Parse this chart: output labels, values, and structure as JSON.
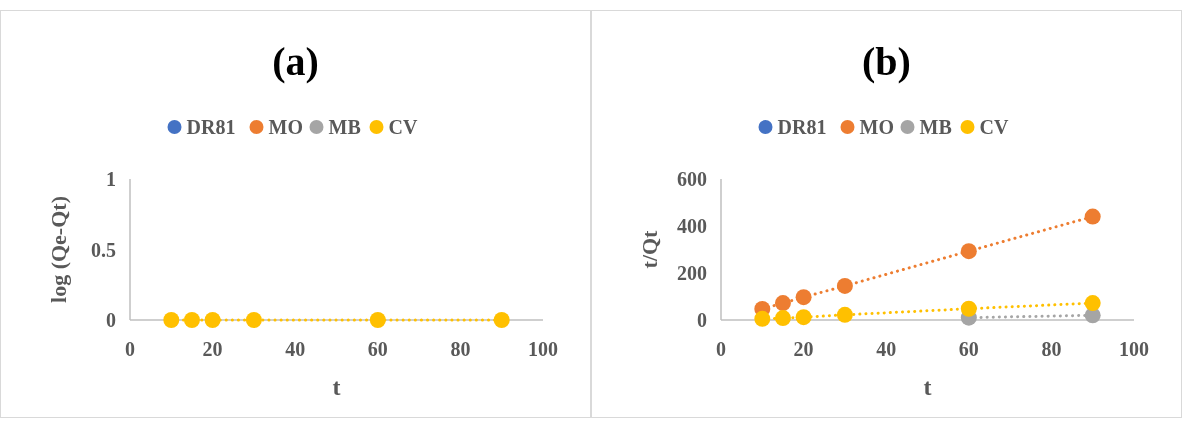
{
  "chart_data": [
    {
      "type": "line",
      "title": "(a)",
      "xlabel": "t",
      "ylabel": "log (Qe-Qt)",
      "x": [
        10,
        15,
        20,
        30,
        60,
        90
      ],
      "xlim": [
        0,
        100
      ],
      "xticks": [
        0,
        20,
        40,
        60,
        80,
        100
      ],
      "ylim": [
        0,
        1
      ],
      "yticks": [
        0,
        0.5,
        1
      ],
      "legend": "top",
      "marker": "circle",
      "line_style": "dotted",
      "series": [
        {
          "name": "DR81",
          "color": "#4472c4",
          "values": [
            null,
            null,
            null,
            null,
            null,
            null
          ]
        },
        {
          "name": "MO",
          "color": "#ed7d31",
          "values": [
            null,
            null,
            null,
            null,
            null,
            null
          ]
        },
        {
          "name": "MB",
          "color": "#a5a5a5",
          "values": [
            null,
            null,
            null,
            null,
            null,
            null
          ]
        },
        {
          "name": "CV",
          "color": "#ffc000",
          "values": [
            0,
            0,
            0,
            0,
            0,
            0
          ]
        }
      ]
    },
    {
      "type": "line",
      "title": "(b)",
      "xlabel": "t",
      "ylabel": "t/Qt",
      "x": [
        10,
        15,
        20,
        30,
        60,
        90
      ],
      "xlim": [
        0,
        100
      ],
      "xticks": [
        0,
        20,
        40,
        60,
        80,
        100
      ],
      "ylim": [
        0,
        600
      ],
      "yticks": [
        0,
        200,
        400,
        600
      ],
      "legend": "top",
      "marker": "circle",
      "line_style": "dotted",
      "series": [
        {
          "name": "DR81",
          "color": "#4472c4",
          "values": [
            null,
            null,
            null,
            null,
            null,
            null
          ]
        },
        {
          "name": "MO",
          "color": "#ed7d31",
          "values": [
            47,
            72,
            97,
            145,
            293,
            440
          ]
        },
        {
          "name": "MB",
          "color": "#a5a5a5",
          "values": [
            null,
            null,
            null,
            null,
            10,
            20
          ]
        },
        {
          "name": "CV",
          "color": "#ffc000",
          "values": [
            5,
            8,
            12,
            22,
            48,
            72
          ]
        }
      ]
    }
  ]
}
